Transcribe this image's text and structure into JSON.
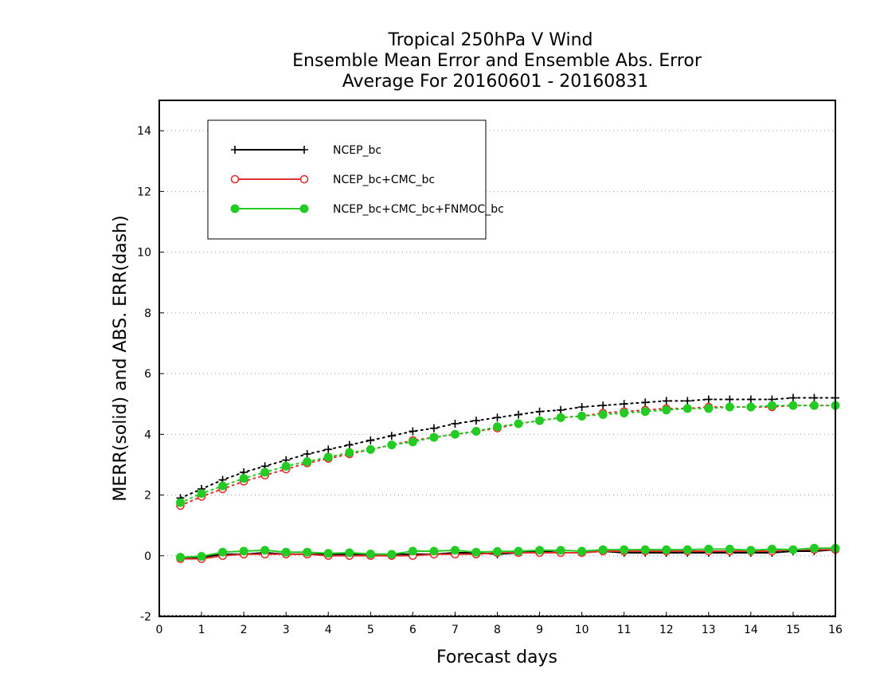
{
  "chart_data": {
    "type": "line",
    "title": [
      "Tropical 250hPa V Wind",
      "Ensemble Mean Error and Ensemble Abs. Error",
      "Average For 20160601 - 20160831"
    ],
    "xlabel": "Forecast days",
    "ylabel": "MERR(solid) and ABS. ERR(dash)",
    "xlim": [
      0,
      16
    ],
    "ylim": [
      -2,
      15
    ],
    "xticks": [
      "0",
      "1",
      "2",
      "3",
      "4",
      "5",
      "6",
      "7",
      "8",
      "9",
      "10",
      "11",
      "12",
      "13",
      "14",
      "15",
      "16"
    ],
    "yticks": [
      "-2",
      "0",
      "2",
      "4",
      "6",
      "8",
      "10",
      "12",
      "14"
    ],
    "grid": "horizontal dotted",
    "legend_position": "top-left",
    "x": [
      0.5,
      1,
      1.5,
      2,
      2.5,
      3,
      3.5,
      4,
      4.5,
      5,
      5.5,
      6,
      6.5,
      7,
      7.5,
      8,
      8.5,
      9,
      9.5,
      10,
      10.5,
      11,
      11.5,
      12,
      12.5,
      13,
      13.5,
      14,
      14.5,
      15,
      15.5,
      16
    ],
    "series": [
      {
        "name": "NCEP_bc",
        "color": "#000000",
        "marker": "plus",
        "merr": [
          -0.1,
          -0.05,
          0.05,
          0.05,
          0.1,
          0.05,
          0.05,
          0.05,
          0.05,
          0.05,
          0.05,
          0.05,
          0.05,
          0.1,
          0.1,
          0.05,
          0.1,
          0.15,
          0.1,
          0.1,
          0.15,
          0.1,
          0.1,
          0.1,
          0.1,
          0.1,
          0.1,
          0.1,
          0.1,
          0.15,
          0.15,
          0.2
        ],
        "abs_err": [
          1.9,
          2.2,
          2.5,
          2.75,
          2.95,
          3.15,
          3.35,
          3.5,
          3.65,
          3.8,
          3.95,
          4.1,
          4.2,
          4.35,
          4.45,
          4.55,
          4.65,
          4.75,
          4.8,
          4.9,
          4.95,
          5.0,
          5.05,
          5.1,
          5.1,
          5.15,
          5.15,
          5.15,
          5.15,
          5.2,
          5.2,
          5.2
        ]
      },
      {
        "name": "NCEP_bc+CMC_bc",
        "color": "#e03030",
        "marker": "open-circle",
        "merr": [
          -0.1,
          -0.1,
          0.0,
          0.05,
          0.05,
          0.05,
          0.05,
          0.0,
          0.0,
          0.0,
          0.0,
          0.0,
          0.05,
          0.05,
          0.05,
          0.1,
          0.1,
          0.1,
          0.1,
          0.1,
          0.15,
          0.15,
          0.15,
          0.15,
          0.15,
          0.15,
          0.15,
          0.15,
          0.15,
          0.2,
          0.2,
          0.2
        ],
        "abs_err": [
          1.65,
          1.95,
          2.2,
          2.45,
          2.65,
          2.85,
          3.05,
          3.2,
          3.35,
          3.5,
          3.65,
          3.8,
          3.9,
          4.0,
          4.1,
          4.2,
          4.35,
          4.45,
          4.55,
          4.6,
          4.7,
          4.75,
          4.8,
          4.85,
          4.85,
          4.9,
          4.9,
          4.9,
          4.9,
          4.95,
          4.95,
          4.95
        ]
      },
      {
        "name": "NCEP_bc+CMC_bc+FNMOC_bc",
        "color": "#22cc22",
        "marker": "filled-circle",
        "merr": [
          -0.05,
          -0.02,
          0.12,
          0.15,
          0.18,
          0.12,
          0.12,
          0.08,
          0.1,
          0.06,
          0.05,
          0.15,
          0.15,
          0.18,
          0.12,
          0.14,
          0.15,
          0.18,
          0.18,
          0.15,
          0.2,
          0.2,
          0.2,
          0.2,
          0.2,
          0.22,
          0.22,
          0.18,
          0.22,
          0.2,
          0.25,
          0.25
        ],
        "abs_err": [
          1.75,
          2.05,
          2.3,
          2.55,
          2.75,
          2.95,
          3.1,
          3.25,
          3.4,
          3.5,
          3.65,
          3.75,
          3.9,
          4.0,
          4.1,
          4.25,
          4.35,
          4.45,
          4.55,
          4.6,
          4.65,
          4.7,
          4.75,
          4.8,
          4.85,
          4.85,
          4.9,
          4.9,
          4.95,
          4.95,
          4.95,
          4.95
        ]
      }
    ]
  }
}
